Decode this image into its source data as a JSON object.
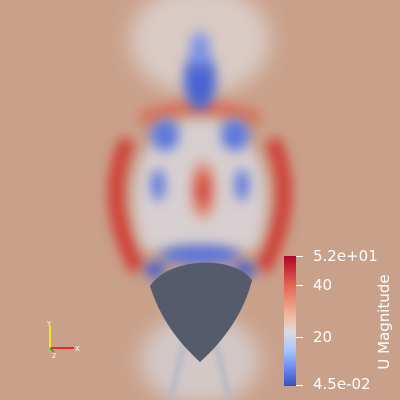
{
  "colorbar": {
    "title": "U Magnitude",
    "tick_labels": [
      "5.2e+01",
      "40",
      "20",
      "4.5e-02"
    ],
    "colors": [
      "#b40426",
      "#e0654f",
      "#dddcdc",
      "#6a8bef",
      "#3b4cc0"
    ]
  },
  "axes": {
    "y_label": "Y",
    "x_label": "X",
    "z_label": "Z",
    "colors": {
      "x": "#ff0000",
      "y": "#ffff00",
      "z": "#00c000"
    }
  },
  "background_color": "#c8a08a",
  "obstacle_color": "#555b6b"
}
